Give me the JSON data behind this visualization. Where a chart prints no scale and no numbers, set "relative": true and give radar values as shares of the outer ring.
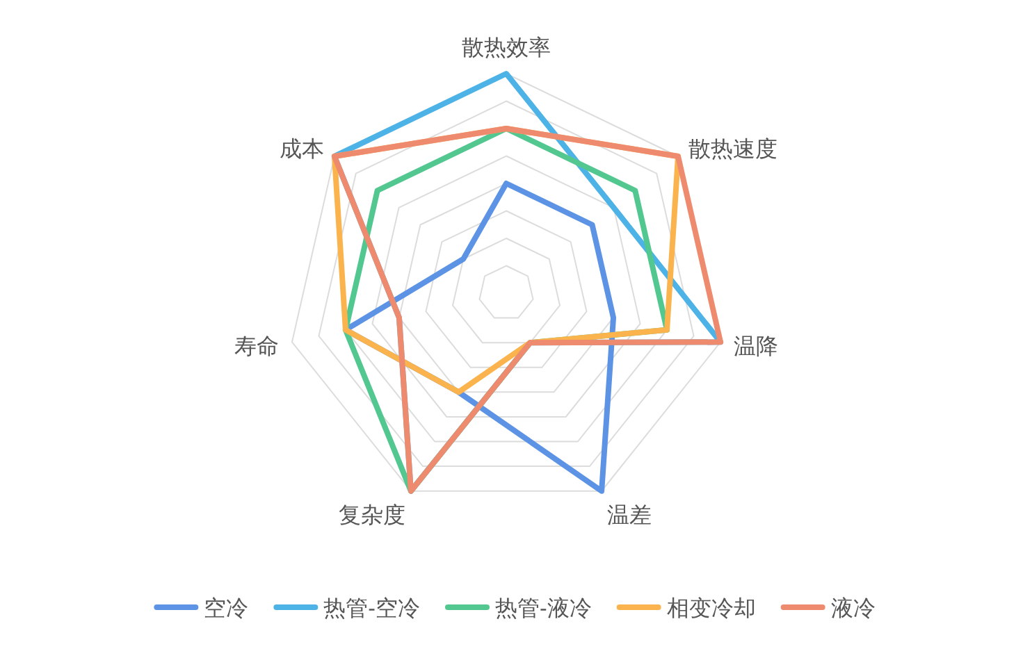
{
  "chart_data": {
    "type": "radar",
    "relative": true,
    "grid": true,
    "legend": "bottom",
    "categories": [
      "散热效率",
      "散热速度",
      "温降",
      "温差",
      "复杂度",
      "寿命",
      "成本"
    ],
    "series": [
      {
        "name": "空冷",
        "color": "#5d93e4",
        "values": [
          0.5,
          0.5,
          0.5,
          1,
          0.5,
          0.75,
          0.25
        ]
      },
      {
        "name": "热管-空冷",
        "color": "#4db3e6",
        "values": [
          1,
          0.625,
          1,
          0.25,
          1,
          0.5,
          1
        ]
      },
      {
        "name": "热管-液冷",
        "color": "#52c78f",
        "values": [
          0.75,
          0.75,
          0.75,
          0.25,
          1,
          0.75,
          0.75
        ]
      },
      {
        "name": "相变冷却",
        "color": "#fbb44d",
        "values": [
          0.75,
          1,
          0.75,
          0.25,
          0.5,
          0.75,
          1
        ]
      },
      {
        "name": "液冷",
        "color": "#ee8a6e",
        "values": [
          0.75,
          1,
          1,
          0.25,
          1,
          0.5,
          1
        ]
      }
    ]
  }
}
